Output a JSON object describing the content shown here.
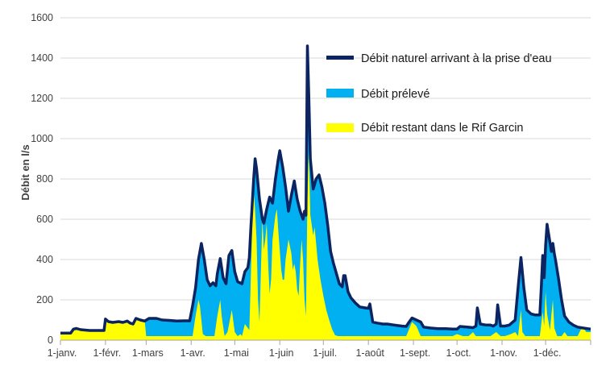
{
  "chart_data": {
    "type": "area",
    "ylabel": "Débit en l/s",
    "ylim": [
      0,
      1600
    ],
    "yticks": [
      0,
      200,
      400,
      600,
      800,
      1000,
      1200,
      1400,
      1600
    ],
    "xlim": [
      0,
      365
    ],
    "xticks": [
      {
        "day": 0,
        "label": "1-janv."
      },
      {
        "day": 31,
        "label": "1-févr."
      },
      {
        "day": 59,
        "label": "1-mars"
      },
      {
        "day": 90,
        "label": "1-avr."
      },
      {
        "day": 120,
        "label": "1-mai"
      },
      {
        "day": 151,
        "label": "1-juin"
      },
      {
        "day": 181,
        "label": "1-juil."
      },
      {
        "day": 212,
        "label": "1-août"
      },
      {
        "day": 243,
        "label": "1-sept."
      },
      {
        "day": 273,
        "label": "1-oct."
      },
      {
        "day": 304,
        "label": "1-nov."
      },
      {
        "day": 334,
        "label": "1-déc."
      }
    ],
    "grid": "horizontal",
    "legend_position": "top-right",
    "colors": {
      "natural": "#0c2461",
      "withdrawn": "#00b0f0",
      "remaining": "#ffff00"
    },
    "series": [
      {
        "name": "Débit naturel arrivant à la prise d'eau",
        "kind": "line",
        "points": [
          [
            0,
            35
          ],
          [
            7,
            35
          ],
          [
            9,
            55
          ],
          [
            11,
            58
          ],
          [
            14,
            52
          ],
          [
            20,
            48
          ],
          [
            27,
            48
          ],
          [
            30,
            48
          ],
          [
            31,
            105
          ],
          [
            33,
            92
          ],
          [
            36,
            88
          ],
          [
            40,
            92
          ],
          [
            43,
            88
          ],
          [
            46,
            95
          ],
          [
            48,
            85
          ],
          [
            50,
            80
          ],
          [
            52,
            108
          ],
          [
            55,
            100
          ],
          [
            58,
            95
          ],
          [
            61,
            108
          ],
          [
            66,
            108
          ],
          [
            70,
            100
          ],
          [
            75,
            98
          ],
          [
            80,
            95
          ],
          [
            85,
            96
          ],
          [
            89,
            96
          ],
          [
            91,
            170
          ],
          [
            93,
            260
          ],
          [
            95,
            400
          ],
          [
            97,
            480
          ],
          [
            99,
            400
          ],
          [
            101,
            300
          ],
          [
            103,
            270
          ],
          [
            105,
            285
          ],
          [
            107,
            270
          ],
          [
            108,
            330
          ],
          [
            110,
            405
          ],
          [
            112,
            310
          ],
          [
            114,
            280
          ],
          [
            116,
            420
          ],
          [
            118,
            445
          ],
          [
            120,
            340
          ],
          [
            122,
            290
          ],
          [
            125,
            280
          ],
          [
            127,
            340
          ],
          [
            129,
            360
          ],
          [
            130,
            410
          ],
          [
            131,
            550
          ],
          [
            133,
            800
          ],
          [
            134,
            900
          ],
          [
            135,
            850
          ],
          [
            137,
            700
          ],
          [
            139,
            600
          ],
          [
            140,
            580
          ],
          [
            142,
            650
          ],
          [
            144,
            710
          ],
          [
            146,
            680
          ],
          [
            148,
            800
          ],
          [
            150,
            900
          ],
          [
            151,
            940
          ],
          [
            153,
            860
          ],
          [
            155,
            760
          ],
          [
            157,
            640
          ],
          [
            159,
            720
          ],
          [
            161,
            790
          ],
          [
            163,
            700
          ],
          [
            165,
            640
          ],
          [
            167,
            600
          ],
          [
            168,
            640
          ],
          [
            169,
            620
          ],
          [
            170,
            1460
          ],
          [
            171,
            1200
          ],
          [
            172,
            900
          ],
          [
            174,
            750
          ],
          [
            176,
            800
          ],
          [
            178,
            820
          ],
          [
            180,
            760
          ],
          [
            182,
            680
          ],
          [
            184,
            570
          ],
          [
            186,
            440
          ],
          [
            188,
            380
          ],
          [
            190,
            330
          ],
          [
            192,
            280
          ],
          [
            194,
            265
          ],
          [
            195,
            320
          ],
          [
            196,
            320
          ],
          [
            198,
            240
          ],
          [
            200,
            210
          ],
          [
            203,
            185
          ],
          [
            206,
            165
          ],
          [
            210,
            160
          ],
          [
            212,
            158
          ],
          [
            213,
            180
          ],
          [
            215,
            90
          ],
          [
            218,
            85
          ],
          [
            222,
            80
          ],
          [
            225,
            80
          ],
          [
            230,
            75
          ],
          [
            235,
            70
          ],
          [
            238,
            68
          ],
          [
            240,
            90
          ],
          [
            242,
            110
          ],
          [
            245,
            100
          ],
          [
            248,
            90
          ],
          [
            250,
            65
          ],
          [
            255,
            60
          ],
          [
            260,
            57
          ],
          [
            265,
            57
          ],
          [
            270,
            55
          ],
          [
            273,
            55
          ],
          [
            275,
            68
          ],
          [
            280,
            65
          ],
          [
            284,
            62
          ],
          [
            286,
            70
          ],
          [
            287,
            160
          ],
          [
            289,
            80
          ],
          [
            293,
            75
          ],
          [
            296,
            75
          ],
          [
            298,
            70
          ],
          [
            300,
            80
          ],
          [
            301,
            175
          ],
          [
            303,
            70
          ],
          [
            306,
            70
          ],
          [
            309,
            75
          ],
          [
            313,
            100
          ],
          [
            315,
            260
          ],
          [
            317,
            410
          ],
          [
            319,
            260
          ],
          [
            321,
            150
          ],
          [
            324,
            130
          ],
          [
            327,
            125
          ],
          [
            330,
            125
          ],
          [
            331,
            260
          ],
          [
            332,
            420
          ],
          [
            333,
            310
          ],
          [
            334,
            470
          ],
          [
            335,
            575
          ],
          [
            336,
            530
          ],
          [
            338,
            440
          ],
          [
            339,
            480
          ],
          [
            340,
            430
          ],
          [
            341,
            390
          ],
          [
            343,
            300
          ],
          [
            345,
            200
          ],
          [
            347,
            120
          ],
          [
            350,
            90
          ],
          [
            353,
            75
          ],
          [
            356,
            65
          ],
          [
            360,
            60
          ],
          [
            365,
            55
          ]
        ]
      },
      {
        "name": "Débit prélevé",
        "kind": "band"
      },
      {
        "name": "Débit restant dans le Rif Garcin",
        "kind": "area",
        "points": [
          [
            0,
            35
          ],
          [
            7,
            35
          ],
          [
            9,
            55
          ],
          [
            11,
            58
          ],
          [
            14,
            52
          ],
          [
            20,
            48
          ],
          [
            27,
            48
          ],
          [
            30,
            48
          ],
          [
            31,
            105
          ],
          [
            33,
            92
          ],
          [
            36,
            88
          ],
          [
            40,
            92
          ],
          [
            43,
            88
          ],
          [
            46,
            95
          ],
          [
            48,
            85
          ],
          [
            50,
            80
          ],
          [
            52,
            108
          ],
          [
            55,
            100
          ],
          [
            58,
            95
          ],
          [
            59,
            20
          ],
          [
            61,
            20
          ],
          [
            75,
            20
          ],
          [
            89,
            20
          ],
          [
            91,
            20
          ],
          [
            93,
            120
          ],
          [
            95,
            200
          ],
          [
            96,
            170
          ],
          [
            98,
            30
          ],
          [
            100,
            20
          ],
          [
            103,
            20
          ],
          [
            106,
            20
          ],
          [
            108,
            120
          ],
          [
            110,
            200
          ],
          [
            111,
            120
          ],
          [
            113,
            20
          ],
          [
            115,
            40
          ],
          [
            118,
            150
          ],
          [
            120,
            40
          ],
          [
            122,
            20
          ],
          [
            124,
            30
          ],
          [
            125,
            20
          ],
          [
            127,
            80
          ],
          [
            129,
            60
          ],
          [
            130,
            50
          ],
          [
            131,
            300
          ],
          [
            132,
            560
          ],
          [
            133,
            760
          ],
          [
            134,
            640
          ],
          [
            135,
            500
          ],
          [
            136,
            200
          ],
          [
            137,
            90
          ],
          [
            139,
            600
          ],
          [
            140,
            450
          ],
          [
            141,
            500
          ],
          [
            142,
            580
          ],
          [
            143,
            380
          ],
          [
            144,
            230
          ],
          [
            145,
            300
          ],
          [
            146,
            500
          ],
          [
            148,
            620
          ],
          [
            149,
            650
          ],
          [
            150,
            540
          ],
          [
            152,
            350
          ],
          [
            153,
            300
          ],
          [
            154,
            300
          ],
          [
            155,
            400
          ],
          [
            157,
            500
          ],
          [
            159,
            430
          ],
          [
            160,
            350
          ],
          [
            161,
            380
          ],
          [
            162,
            340
          ],
          [
            163,
            250
          ],
          [
            164,
            220
          ],
          [
            165,
            380
          ],
          [
            166,
            500
          ],
          [
            167,
            400
          ],
          [
            168,
            200
          ],
          [
            169,
            120
          ],
          [
            170,
            700
          ],
          [
            171,
            950
          ],
          [
            172,
            620
          ],
          [
            174,
            520
          ],
          [
            175,
            560
          ],
          [
            177,
            400
          ],
          [
            179,
            300
          ],
          [
            181,
            220
          ],
          [
            183,
            150
          ],
          [
            185,
            100
          ],
          [
            187,
            55
          ],
          [
            189,
            25
          ],
          [
            191,
            20
          ],
          [
            197,
            20
          ],
          [
            199,
            20
          ],
          [
            207,
            20
          ],
          [
            212,
            20
          ],
          [
            215,
            20
          ],
          [
            219,
            20
          ],
          [
            222,
            20
          ],
          [
            238,
            20
          ],
          [
            242,
            90
          ],
          [
            245,
            70
          ],
          [
            248,
            20
          ],
          [
            250,
            20
          ],
          [
            255,
            20
          ],
          [
            260,
            20
          ],
          [
            270,
            20
          ],
          [
            273,
            30
          ],
          [
            277,
            20
          ],
          [
            281,
            20
          ],
          [
            284,
            40
          ],
          [
            286,
            20
          ],
          [
            288,
            20
          ],
          [
            292,
            20
          ],
          [
            296,
            20
          ],
          [
            300,
            40
          ],
          [
            303,
            20
          ],
          [
            306,
            20
          ],
          [
            310,
            30
          ],
          [
            313,
            40
          ],
          [
            315,
            20
          ],
          [
            317,
            150
          ],
          [
            318,
            40
          ],
          [
            320,
            20
          ],
          [
            324,
            20
          ],
          [
            330,
            20
          ],
          [
            332,
            140
          ],
          [
            333,
            70
          ],
          [
            334,
            240
          ],
          [
            335,
            130
          ],
          [
            337,
            50
          ],
          [
            339,
            200
          ],
          [
            340,
            60
          ],
          [
            342,
            20
          ],
          [
            345,
            20
          ],
          [
            347,
            40
          ],
          [
            349,
            20
          ],
          [
            352,
            20
          ],
          [
            356,
            20
          ],
          [
            358,
            50
          ],
          [
            360,
            60
          ],
          [
            362,
            40
          ],
          [
            365,
            40
          ]
        ]
      }
    ]
  }
}
